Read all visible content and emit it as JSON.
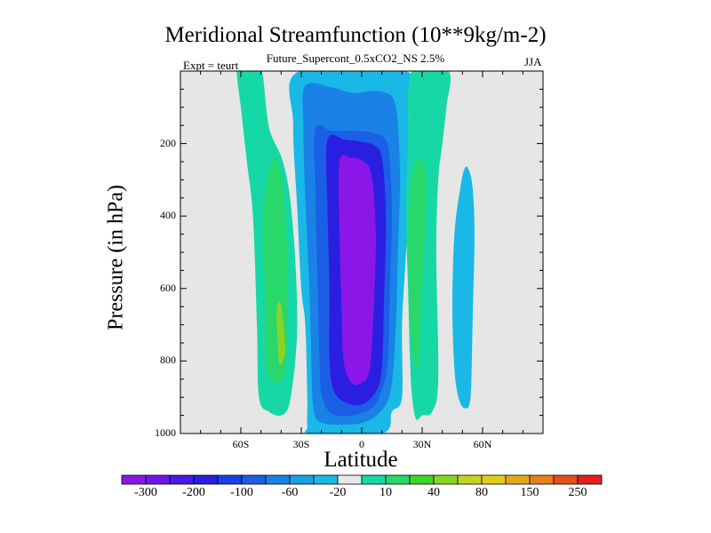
{
  "title": "Meridional Streamfunction (10**9kg/m-2)",
  "subtitle": "Future_Supercont_0.5xCO2_NS 2.5%",
  "left_string": "Expt = teurt",
  "right_string": "JJA",
  "chart_data": {
    "type": "contour",
    "xlabel": "Latitude",
    "ylabel": "Pressure (in hPa)",
    "xlim": [
      -90,
      90
    ],
    "ylim": [
      1000,
      0
    ],
    "x_ticks": [
      {
        "value": -60,
        "label": "60S"
      },
      {
        "value": -30,
        "label": "30S"
      },
      {
        "value": 0,
        "label": "0"
      },
      {
        "value": 30,
        "label": "30N"
      },
      {
        "value": 60,
        "label": "60N"
      }
    ],
    "y_ticks": [
      {
        "value": 200,
        "label": "200"
      },
      {
        "value": 400,
        "label": "400"
      },
      {
        "value": 600,
        "label": "600"
      },
      {
        "value": 800,
        "label": "800"
      },
      {
        "value": 1000,
        "label": "1000"
      }
    ],
    "colorbar": {
      "colors": [
        "#8a17e8",
        "#6e17ea",
        "#4a19e6",
        "#2a1fe0",
        "#1a3fe6",
        "#1a5fe6",
        "#1a82e6",
        "#1aa0e6",
        "#1ab8e6",
        "#e8e8e8",
        "#16d8a6",
        "#28d86a",
        "#40d42a",
        "#88d426",
        "#c2d41e",
        "#e2cc1a",
        "#e6a81a",
        "#e6801a",
        "#e6501a",
        "#e61e1e"
      ],
      "labels": [
        {
          "index": 1,
          "text": "-300"
        },
        {
          "index": 3,
          "text": "-200"
        },
        {
          "index": 5,
          "text": "-100"
        },
        {
          "index": 7,
          "text": "-60"
        },
        {
          "index": 9,
          "text": "-20"
        },
        {
          "index": 11,
          "text": "10"
        },
        {
          "index": 13,
          "text": "40"
        },
        {
          "index": 15,
          "text": "80"
        },
        {
          "index": 17,
          "text": "150"
        },
        {
          "index": 19,
          "text": "250"
        }
      ]
    },
    "background_color": "#e6e6e6",
    "regions": [
      {
        "level": "10",
        "color": "#16d8a6",
        "pts": [
          [
            -62,
            0
          ],
          [
            -59,
            -15
          ],
          [
            -56,
            -5
          ],
          [
            -54,
            -15
          ],
          [
            -51,
            -5
          ],
          [
            -49,
            15
          ],
          [
            -46,
            155
          ],
          [
            -40,
            235
          ],
          [
            -37,
            300
          ],
          [
            -35,
            380
          ],
          [
            -33,
            520
          ],
          [
            -32,
            680
          ],
          [
            -33,
            800
          ],
          [
            -36,
            920
          ],
          [
            -40,
            950
          ],
          [
            -46,
            940
          ],
          [
            -51,
            900
          ],
          [
            -52,
            700
          ],
          [
            -54,
            400
          ],
          [
            -57,
            250
          ],
          [
            -60,
            100
          ]
        ]
      },
      {
        "level": "40",
        "color": "#28d86a",
        "pts": [
          [
            -42,
            240
          ],
          [
            -39,
            330
          ],
          [
            -37,
            500
          ],
          [
            -37,
            720
          ],
          [
            -38,
            830
          ],
          [
            -42,
            860
          ],
          [
            -47,
            820
          ],
          [
            -48,
            600
          ],
          [
            -49,
            420
          ],
          [
            -47,
            310
          ],
          [
            -45,
            260
          ]
        ]
      },
      {
        "level": "80",
        "color": "#88d426",
        "pts": [
          [
            -40,
            645
          ],
          [
            -38,
            760
          ],
          [
            -39,
            800
          ],
          [
            -41,
            805
          ],
          [
            -42,
            720
          ],
          [
            -42,
            650
          ]
        ]
      },
      {
        "level": "-20",
        "color": "#1ab8e6",
        "pts": [
          [
            -31,
            0
          ],
          [
            -34,
            150
          ],
          [
            -32,
            380
          ],
          [
            -30,
            600
          ],
          [
            -28,
            700
          ],
          [
            -27,
            900
          ],
          [
            -27,
            980
          ],
          [
            -25,
            1000
          ],
          [
            10,
            1000
          ],
          [
            15,
            940
          ],
          [
            20,
            900
          ],
          [
            20,
            700
          ],
          [
            22,
            500
          ],
          [
            24,
            300
          ],
          [
            23,
            120
          ],
          [
            22,
            0
          ]
        ]
      },
      {
        "level": "-60",
        "color": "#1a82e6",
        "pts": [
          [
            -28,
            40
          ],
          [
            -29,
            150
          ],
          [
            -28,
            350
          ],
          [
            -26,
            600
          ],
          [
            -25,
            800
          ],
          [
            -24,
            930
          ],
          [
            -20,
            970
          ],
          [
            -5,
            975
          ],
          [
            5,
            960
          ],
          [
            12,
            920
          ],
          [
            15,
            860
          ],
          [
            17,
            700
          ],
          [
            18,
            500
          ],
          [
            19,
            300
          ],
          [
            18,
            150
          ],
          [
            16,
            80
          ],
          [
            12,
            60
          ],
          [
            5,
            55
          ],
          [
            -5,
            60
          ],
          [
            -15,
            45
          ]
        ]
      },
      {
        "level": "-100",
        "color": "#1a5fe6",
        "pts": [
          [
            -23,
            160
          ],
          [
            -23,
            330
          ],
          [
            -22,
            560
          ],
          [
            -21,
            780
          ],
          [
            -20,
            890
          ],
          [
            -15,
            945
          ],
          [
            -5,
            950
          ],
          [
            5,
            930
          ],
          [
            10,
            880
          ],
          [
            13,
            800
          ],
          [
            14,
            600
          ],
          [
            15,
            400
          ],
          [
            14,
            250
          ],
          [
            12,
            190
          ],
          [
            5,
            170
          ],
          [
            -5,
            165
          ],
          [
            -15,
            165
          ]
        ]
      },
      {
        "level": "-200",
        "color": "#2a1fe0",
        "pts": [
          [
            -17,
            190
          ],
          [
            -17,
            380
          ],
          [
            -16,
            600
          ],
          [
            -16,
            790
          ],
          [
            -14,
            880
          ],
          [
            -8,
            915
          ],
          [
            0,
            920
          ],
          [
            7,
            885
          ],
          [
            10,
            820
          ],
          [
            11,
            650
          ],
          [
            12,
            400
          ],
          [
            10,
            240
          ],
          [
            6,
            205
          ],
          [
            0,
            195
          ],
          [
            -8,
            190
          ]
        ]
      },
      {
        "level": "-300",
        "color": "#8a17e8",
        "pts": [
          [
            -11,
            250
          ],
          [
            -11,
            450
          ],
          [
            -10,
            650
          ],
          [
            -9,
            800
          ],
          [
            -5,
            860
          ],
          [
            0,
            860
          ],
          [
            4,
            820
          ],
          [
            6,
            650
          ],
          [
            7,
            450
          ],
          [
            5,
            290
          ],
          [
            1,
            250
          ],
          [
            -5,
            240
          ]
        ]
      },
      {
        "level": "10",
        "color": "#16d8a6",
        "pts": [
          [
            25,
            0
          ],
          [
            23,
            200
          ],
          [
            22,
            400
          ],
          [
            23,
            600
          ],
          [
            24,
            800
          ],
          [
            25,
            900
          ],
          [
            27,
            960
          ],
          [
            30,
            950
          ],
          [
            35,
            940
          ],
          [
            38,
            850
          ],
          [
            37,
            500
          ],
          [
            38,
            300
          ],
          [
            40,
            200
          ],
          [
            42,
            100
          ],
          [
            43,
            0
          ]
        ]
      },
      {
        "level": "40",
        "color": "#28d86a",
        "pts": [
          [
            27,
            250
          ],
          [
            24,
            330
          ],
          [
            23,
            500
          ],
          [
            24,
            700
          ],
          [
            26,
            800
          ],
          [
            28,
            810
          ],
          [
            30,
            600
          ],
          [
            32,
            350
          ],
          [
            31,
            260
          ]
        ]
      },
      {
        "level": "-20",
        "color": "#1ab8e6",
        "pts": [
          [
            51,
            270
          ],
          [
            49,
            320
          ],
          [
            46,
            450
          ],
          [
            45,
            650
          ],
          [
            46,
            820
          ],
          [
            48,
            900
          ],
          [
            51,
            930
          ],
          [
            54,
            900
          ],
          [
            55,
            700
          ],
          [
            56,
            450
          ],
          [
            55,
            320
          ],
          [
            53,
            270
          ]
        ]
      }
    ]
  }
}
